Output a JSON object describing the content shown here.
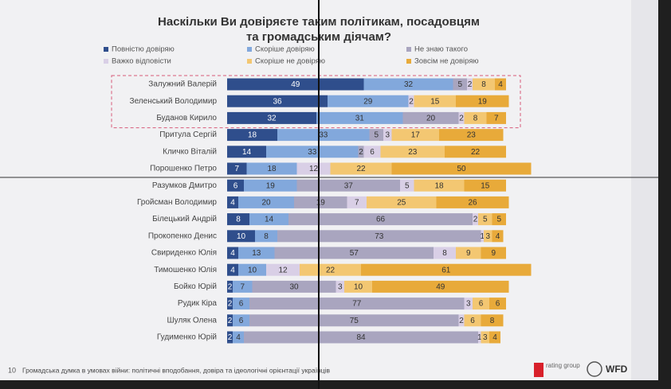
{
  "chart_data": {
    "type": "bar",
    "orientation": "horizontal",
    "stacked": true,
    "title": "Наскільки Ви довіряєте таким політикам, посадовцям та громадським діячам?",
    "footer": "Громадська думка в умовах війни: політичні вподобання, довіра та ідеологічні орієнтації українців",
    "page_number": "10",
    "logos": [
      "rating group",
      "WFD"
    ],
    "categories": [
      "Залужний Валерій",
      "Зеленський Володимир",
      "Буданов Кирило",
      "Притула Сергій",
      "Кличко Віталій",
      "Порошенко Петро",
      "Разумков Дмитро",
      "Гройсман Володимир",
      "Білецький Андрій",
      "Прокопенко Денис",
      "Свириденко Юлія",
      "Тимошенко Юлія",
      "Бойко Юрій",
      "Рудик Кіра",
      "Шуляк Олена",
      "Гудименко Юрій"
    ],
    "xlim": [
      0,
      110
    ],
    "series": [
      {
        "name": "Повністю довіряю",
        "color": "#2f4e8c",
        "values": [
          49,
          36,
          32,
          18,
          14,
          7,
          6,
          4,
          8,
          10,
          4,
          4,
          2,
          2,
          2,
          2
        ]
      },
      {
        "name": "Скоріше довіряю",
        "color": "#82a8dc",
        "values": [
          32,
          29,
          31,
          33,
          33,
          18,
          19,
          20,
          14,
          8,
          13,
          10,
          7,
          6,
          6,
          4
        ]
      },
      {
        "name": "Не знаю такого",
        "color": "#a9a5bf",
        "values": [
          5,
          null,
          20,
          5,
          2,
          null,
          37,
          19,
          66,
          73,
          57,
          null,
          30,
          77,
          75,
          84
        ]
      },
      {
        "name": "Важко відповісти",
        "color": "#d9cfe6",
        "values": [
          2,
          2,
          2,
          3,
          6,
          12,
          5,
          7,
          2,
          1,
          8,
          12,
          3,
          3,
          2,
          1
        ]
      },
      {
        "name": "Скоріше не довіряю",
        "color": "#f3c772",
        "values": [
          8,
          15,
          8,
          17,
          23,
          22,
          18,
          25,
          5,
          3,
          9,
          22,
          10,
          6,
          6,
          3
        ]
      },
      {
        "name": "Зовсім не довіряю",
        "color": "#e8aa3a",
        "values": [
          4,
          19,
          7,
          23,
          22,
          50,
          15,
          26,
          5,
          4,
          9,
          61,
          49,
          6,
          8,
          4
        ]
      }
    ],
    "highlight_rows": [
      0,
      1,
      2
    ]
  }
}
